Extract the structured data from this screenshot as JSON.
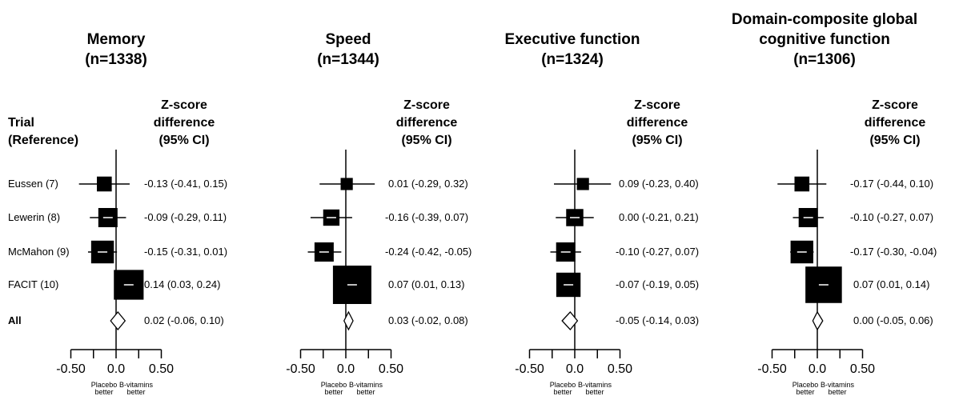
{
  "trial_header": [
    "Trial",
    "(Reference)"
  ],
  "trials": [
    "Eussen (7)",
    "Lewerin (8)",
    "McMahon (9)",
    "FACIT (10)",
    "All"
  ],
  "estimate_header": [
    "Z-score",
    "difference",
    "(95% CI)"
  ],
  "chart_data": [
    {
      "type": "forest",
      "title": [
        "Memory",
        "(n=1338)"
      ],
      "x_ticks": [
        "-0.50",
        "0.0",
        "0.50"
      ],
      "xlim": [
        -0.5,
        0.5
      ],
      "direction_labels": {
        "left": [
          "Placebo",
          "better"
        ],
        "right": [
          "B-vitamins",
          "better"
        ]
      },
      "rows": [
        {
          "trial": "Eussen (7)",
          "est": -0.13,
          "lo": -0.41,
          "hi": 0.15,
          "weight": 0.15,
          "label": "-0.13 (-0.41, 0.15)"
        },
        {
          "trial": "Lewerin (8)",
          "est": -0.09,
          "lo": -0.29,
          "hi": 0.11,
          "weight": 0.25,
          "label": "-0.09 (-0.29, 0.11)"
        },
        {
          "trial": "McMahon (9)",
          "est": -0.15,
          "lo": -0.31,
          "hi": 0.01,
          "weight": 0.35,
          "label": "-0.15 (-0.31, 0.01)"
        },
        {
          "trial": "FACIT (10)",
          "est": 0.14,
          "lo": 0.03,
          "hi": 0.24,
          "weight": 0.6,
          "label": "0.14 (0.03, 0.24)"
        }
      ],
      "pooled": {
        "trial": "All",
        "est": 0.02,
        "lo": -0.06,
        "hi": 0.1,
        "label": "0.02 (-0.06, 0.10)"
      }
    },
    {
      "type": "forest",
      "title": [
        "Speed",
        "(n=1344)"
      ],
      "x_ticks": [
        "-0.50",
        "0.0",
        "0.50"
      ],
      "xlim": [
        -0.5,
        0.5
      ],
      "direction_labels": {
        "left": [
          "Placebo",
          "better"
        ],
        "right": [
          "B-vitamins",
          "better"
        ]
      },
      "rows": [
        {
          "trial": "Eussen (7)",
          "est": 0.01,
          "lo": -0.29,
          "hi": 0.32,
          "weight": 0.1,
          "label": "0.01 (-0.29, 0.32)"
        },
        {
          "trial": "Lewerin (8)",
          "est": -0.16,
          "lo": -0.39,
          "hi": 0.07,
          "weight": 0.18,
          "label": "-0.16 (-0.39, 0.07)"
        },
        {
          "trial": "McMahon (9)",
          "est": -0.24,
          "lo": -0.42,
          "hi": -0.05,
          "weight": 0.25,
          "label": "-0.24 (-0.42, -0.05)"
        },
        {
          "trial": "FACIT (10)",
          "est": 0.07,
          "lo": 0.01,
          "hi": 0.13,
          "weight": 1.0,
          "label": "0.07 (0.01, 0.13)"
        }
      ],
      "pooled": {
        "trial": "All",
        "est": 0.03,
        "lo": -0.02,
        "hi": 0.08,
        "label": "0.03 (-0.02, 0.08)"
      }
    },
    {
      "type": "forest",
      "title": [
        "Executive function",
        "(n=1324)"
      ],
      "x_ticks": [
        "-0.50",
        "0.0",
        "0.50"
      ],
      "xlim": [
        -0.5,
        0.5
      ],
      "direction_labels": {
        "left": [
          "Placebo",
          "better"
        ],
        "right": [
          "B-vitamins",
          "better"
        ]
      },
      "rows": [
        {
          "trial": "Eussen (7)",
          "est": 0.09,
          "lo": -0.23,
          "hi": 0.4,
          "weight": 0.1,
          "label": "0.09 (-0.23, 0.40)"
        },
        {
          "trial": "Lewerin (8)",
          "est": 0.0,
          "lo": -0.21,
          "hi": 0.21,
          "weight": 0.2,
          "label": "0.00 (-0.21, 0.21)"
        },
        {
          "trial": "McMahon (9)",
          "est": -0.1,
          "lo": -0.27,
          "hi": 0.07,
          "weight": 0.25,
          "label": "-0.10 (-0.27, 0.07)"
        },
        {
          "trial": "FACIT (10)",
          "est": -0.07,
          "lo": -0.19,
          "hi": 0.05,
          "weight": 0.4,
          "label": "-0.07 (-0.19, 0.05)"
        }
      ],
      "pooled": {
        "trial": "All",
        "est": -0.05,
        "lo": -0.14,
        "hi": 0.03,
        "label": "-0.05 (-0.14, 0.03)"
      }
    },
    {
      "type": "forest",
      "title": [
        "Domain-composite global",
        "cognitive function",
        "(n=1306)"
      ],
      "x_ticks": [
        "-0.50",
        "0.0",
        "0.50"
      ],
      "xlim": [
        -0.5,
        0.5
      ],
      "direction_labels": {
        "left": [
          "Placebo",
          "better"
        ],
        "right": [
          "B-vitamins",
          "better"
        ]
      },
      "rows": [
        {
          "trial": "Eussen (7)",
          "est": -0.17,
          "lo": -0.44,
          "hi": 0.1,
          "weight": 0.15,
          "label": "-0.17 (-0.44, 0.10)"
        },
        {
          "trial": "Lewerin (8)",
          "est": -0.1,
          "lo": -0.27,
          "hi": 0.07,
          "weight": 0.25,
          "label": "-0.10 (-0.27, 0.07)"
        },
        {
          "trial": "McMahon (9)",
          "est": -0.17,
          "lo": -0.3,
          "hi": -0.04,
          "weight": 0.35,
          "label": "-0.17 (-0.30, -0.04)"
        },
        {
          "trial": "FACIT (10)",
          "est": 0.07,
          "lo": 0.01,
          "hi": 0.14,
          "weight": 0.9,
          "label": "0.07 (0.01, 0.14)"
        }
      ],
      "pooled": {
        "trial": "All",
        "est": 0.0,
        "lo": -0.05,
        "hi": 0.06,
        "label": "0.00 (-0.05, 0.06)"
      }
    }
  ]
}
